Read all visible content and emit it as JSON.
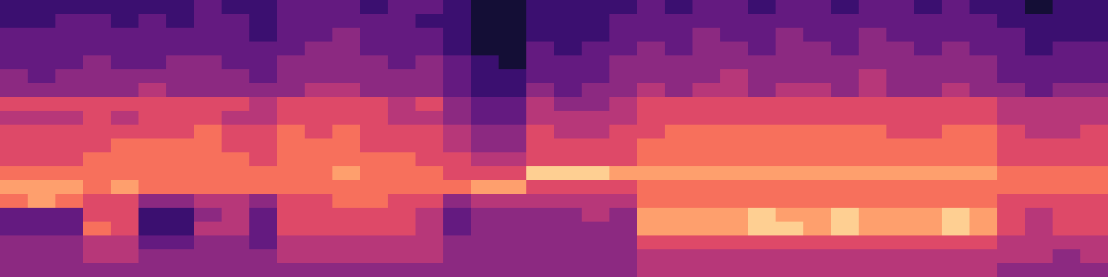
{
  "chart_data": {
    "type": "heatmap",
    "color": "magma",
    "color_range": [
      0,
      10
    ],
    "tick_labels": false,
    "cells": [
      [
        2,
        2,
        2,
        2,
        2,
        2,
        2,
        3,
        2,
        2,
        3,
        3,
        3,
        2,
        3,
        3,
        2,
        1,
        1,
        2,
        2,
        2,
        2,
        3,
        2,
        3,
        3,
        2,
        3,
        3,
        2,
        3,
        3,
        2,
        3,
        2,
        2,
        1,
        2,
        2
      ],
      [
        2,
        2,
        3,
        3,
        2,
        3,
        2,
        3,
        3,
        2,
        3,
        3,
        3,
        3,
        3,
        2,
        2,
        1,
        1,
        2,
        2,
        2,
        3,
        3,
        3,
        3,
        3,
        3,
        3,
        3,
        3,
        3,
        3,
        3,
        3,
        3,
        2,
        2,
        2,
        2
      ],
      [
        3,
        3,
        3,
        3,
        3,
        3,
        3,
        3,
        3,
        2,
        3,
        3,
        4,
        3,
        3,
        3,
        2,
        1,
        1,
        2,
        2,
        2,
        3,
        3,
        3,
        4,
        3,
        3,
        4,
        3,
        3,
        4,
        3,
        3,
        3,
        3,
        3,
        2,
        2,
        2
      ],
      [
        3,
        3,
        3,
        3,
        3,
        3,
        3,
        3,
        3,
        3,
        3,
        4,
        4,
        3,
        3,
        3,
        2,
        1,
        1,
        3,
        2,
        3,
        3,
        4,
        3,
        4,
        4,
        3,
        4,
        4,
        3,
        4,
        4,
        3,
        4,
        3,
        3,
        2,
        3,
        3
      ],
      [
        3,
        3,
        3,
        4,
        3,
        3,
        4,
        4,
        3,
        3,
        4,
        4,
        4,
        4,
        3,
        4,
        3,
        2,
        1,
        3,
        3,
        3,
        4,
        4,
        4,
        4,
        4,
        4,
        4,
        4,
        4,
        4,
        4,
        4,
        4,
        4,
        3,
        3,
        3,
        3
      ],
      [
        4,
        3,
        4,
        4,
        4,
        4,
        4,
        4,
        4,
        3,
        4,
        4,
        4,
        4,
        4,
        4,
        3,
        2,
        2,
        3,
        3,
        3,
        4,
        4,
        4,
        4,
        5,
        4,
        4,
        4,
        4,
        5,
        4,
        4,
        4,
        4,
        3,
        3,
        3,
        3
      ],
      [
        4,
        4,
        4,
        4,
        4,
        5,
        4,
        4,
        4,
        4,
        4,
        5,
        5,
        4,
        4,
        4,
        3,
        2,
        2,
        4,
        3,
        4,
        4,
        5,
        4,
        5,
        5,
        4,
        5,
        5,
        4,
        5,
        4,
        4,
        5,
        4,
        4,
        3,
        4,
        4
      ],
      [
        6,
        6,
        6,
        6,
        6,
        6,
        6,
        6,
        6,
        5,
        6,
        6,
        6,
        6,
        5,
        6,
        4,
        3,
        3,
        5,
        4,
        4,
        5,
        6,
        6,
        6,
        6,
        6,
        6,
        6,
        6,
        6,
        6,
        6,
        6,
        6,
        5,
        5,
        5,
        5
      ],
      [
        5,
        5,
        5,
        6,
        5,
        6,
        6,
        6,
        5,
        5,
        6,
        6,
        6,
        6,
        5,
        5,
        4,
        3,
        3,
        5,
        5,
        5,
        5,
        6,
        6,
        6,
        6,
        6,
        6,
        6,
        6,
        6,
        6,
        6,
        6,
        6,
        5,
        5,
        5,
        5
      ],
      [
        6,
        6,
        6,
        6,
        6,
        6,
        6,
        7,
        6,
        6,
        7,
        6,
        7,
        6,
        6,
        6,
        5,
        4,
        4,
        6,
        5,
        5,
        6,
        6,
        7,
        7,
        7,
        7,
        7,
        7,
        7,
        7,
        6,
        6,
        7,
        7,
        6,
        5,
        5,
        6
      ],
      [
        6,
        6,
        6,
        6,
        7,
        7,
        7,
        7,
        6,
        6,
        7,
        7,
        7,
        6,
        6,
        6,
        5,
        4,
        4,
        6,
        6,
        6,
        6,
        7,
        7,
        7,
        7,
        7,
        7,
        7,
        7,
        7,
        7,
        7,
        7,
        7,
        6,
        6,
        6,
        6
      ],
      [
        6,
        6,
        6,
        7,
        7,
        7,
        7,
        7,
        7,
        6,
        7,
        7,
        7,
        7,
        7,
        6,
        6,
        5,
        5,
        6,
        6,
        6,
        6,
        7,
        7,
        7,
        7,
        7,
        7,
        7,
        7,
        7,
        7,
        7,
        7,
        7,
        6,
        6,
        6,
        6
      ],
      [
        7,
        7,
        7,
        7,
        7,
        7,
        7,
        7,
        7,
        7,
        7,
        7,
        8,
        7,
        7,
        7,
        6,
        6,
        6,
        9,
        9,
        9,
        8,
        8,
        8,
        8,
        8,
        8,
        8,
        8,
        8,
        8,
        8,
        8,
        8,
        8,
        7,
        7,
        7,
        7
      ],
      [
        8,
        8,
        8,
        7,
        8,
        7,
        7,
        7,
        7,
        7,
        7,
        7,
        7,
        7,
        7,
        7,
        7,
        8,
        8,
        6,
        6,
        6,
        6,
        7,
        7,
        7,
        7,
        7,
        7,
        7,
        7,
        7,
        7,
        7,
        7,
        7,
        7,
        7,
        7,
        7
      ],
      [
        7,
        8,
        7,
        6,
        6,
        4,
        4,
        5,
        5,
        4,
        6,
        6,
        7,
        7,
        6,
        6,
        4,
        5,
        5,
        5,
        5,
        5,
        5,
        7,
        7,
        7,
        7,
        7,
        7,
        7,
        7,
        7,
        7,
        7,
        7,
        7,
        6,
        6,
        6,
        6
      ],
      [
        3,
        3,
        3,
        6,
        6,
        2,
        2,
        4,
        5,
        3,
        6,
        6,
        6,
        6,
        6,
        5,
        3,
        4,
        4,
        4,
        4,
        5,
        4,
        8,
        8,
        8,
        8,
        9,
        8,
        8,
        9,
        8,
        8,
        8,
        9,
        8,
        6,
        5,
        6,
        6
      ],
      [
        3,
        3,
        3,
        7,
        6,
        2,
        2,
        5,
        5,
        3,
        6,
        6,
        6,
        6,
        6,
        5,
        3,
        4,
        4,
        4,
        4,
        4,
        4,
        8,
        8,
        8,
        8,
        9,
        9,
        8,
        9,
        8,
        8,
        8,
        9,
        8,
        6,
        5,
        6,
        6
      ],
      [
        4,
        4,
        4,
        5,
        5,
        3,
        3,
        4,
        4,
        3,
        5,
        5,
        5,
        5,
        5,
        5,
        4,
        4,
        4,
        4,
        4,
        4,
        4,
        6,
        6,
        6,
        6,
        6,
        6,
        6,
        6,
        6,
        6,
        6,
        6,
        6,
        5,
        5,
        5,
        5
      ],
      [
        4,
        4,
        4,
        5,
        5,
        4,
        4,
        4,
        4,
        4,
        5,
        5,
        5,
        5,
        5,
        5,
        4,
        4,
        4,
        4,
        4,
        4,
        4,
        5,
        5,
        5,
        5,
        5,
        5,
        5,
        5,
        5,
        5,
        5,
        5,
        5,
        5,
        5,
        4,
        5
      ],
      [
        4,
        4,
        4,
        4,
        4,
        4,
        4,
        4,
        4,
        4,
        4,
        4,
        4,
        4,
        4,
        4,
        4,
        4,
        4,
        4,
        4,
        4,
        4,
        5,
        5,
        5,
        5,
        5,
        5,
        5,
        5,
        5,
        5,
        5,
        5,
        5,
        4,
        4,
        4,
        4
      ]
    ]
  }
}
